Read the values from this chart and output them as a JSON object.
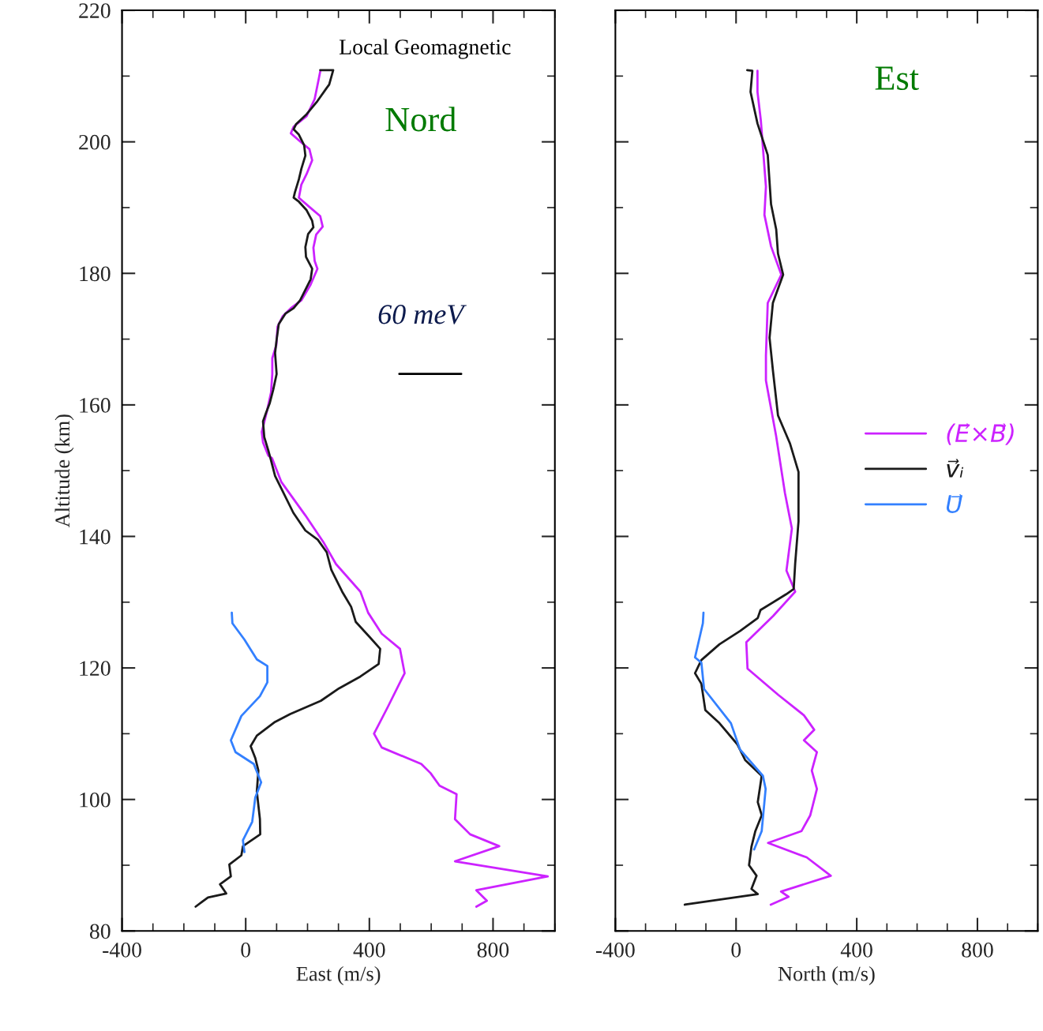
{
  "chart_data": [
    {
      "type": "line",
      "xlabel": "East (m/s)",
      "ylabel": "Altitude (km)",
      "xlim": [
        -400,
        1000
      ],
      "ylim": [
        80,
        220
      ],
      "xticks": [
        -400,
        {
          "value": -300,
          "label": null
        },
        {
          "value": -200,
          "label": null
        },
        {
          "value": -100,
          "label": null
        },
        0,
        {
          "value": 100,
          "label": null
        },
        {
          "value": 200,
          "label": null
        },
        {
          "value": 300,
          "label": null
        },
        400,
        {
          "value": 500,
          "label": null
        },
        {
          "value": 600,
          "label": null
        },
        {
          "value": 700,
          "label": null
        },
        800,
        {
          "value": 900,
          "label": null
        },
        {
          "value": 1000,
          "label": null
        }
      ],
      "yticks": [
        80,
        {
          "value": 90,
          "label": null
        },
        100,
        {
          "value": 110,
          "label": null
        },
        120,
        {
          "value": 130,
          "label": null
        },
        140,
        {
          "value": 150,
          "label": null
        },
        160,
        {
          "value": 170,
          "label": null
        },
        180,
        {
          "value": 190,
          "label": null
        },
        200,
        {
          "value": 210,
          "label": null
        },
        220
      ],
      "annotations": [
        "Local Geomagnetic",
        "Nord",
        "60 meV"
      ],
      "series": [
        {
          "color": "#cc22ff",
          "x": [
            241,
            236,
            223,
            197,
            155,
            146,
            180,
            206,
            215,
            197,
            180,
            172,
            206,
            241,
            249,
            228,
            219,
            223,
            232,
            210,
            180,
            146,
            120,
            103,
            99,
            86,
            86,
            82,
            69,
            52,
            56,
            73,
            85,
            115,
            193,
            253,
            292,
            371,
            396,
            440,
            499,
            514,
            460,
            415,
            440,
            568,
            598,
            627,
            682,
            677,
            726,
            820,
            677,
            977,
            746,
            780,
            746
          ],
          "values": [
            210.7,
            209.5,
            206.5,
            203.9,
            202.3,
            201.3,
            199.9,
            198.9,
            197.2,
            195.1,
            193.5,
            191.5,
            190.1,
            188.7,
            187.1,
            185.9,
            183.9,
            181.9,
            180.7,
            178.3,
            175.9,
            174.7,
            173.5,
            171.9,
            169.1,
            167.1,
            164.7,
            161.9,
            159.1,
            155.9,
            154.3,
            152.3,
            151.9,
            148.3,
            143.2,
            139.0,
            135.8,
            131.6,
            128.4,
            125.2,
            122.9,
            119.2,
            114.1,
            110.0,
            107.9,
            105.4,
            104.0,
            102.1,
            100.8,
            97.0,
            94.7,
            92.9,
            90.6,
            88.3,
            86.2,
            84.6,
            83.7
          ]
        },
        {
          "color": "#1a1a1a",
          "x": [
            241,
            283,
            270,
            262,
            232,
            197,
            163,
            155,
            172,
            189,
            193,
            180,
            172,
            159,
            155,
            172,
            197,
            215,
            219,
            202,
            193,
            195,
            215,
            210,
            193,
            176,
            155,
            129,
            107,
            100,
            95,
            100,
            89,
            78,
            65,
            56,
            60,
            73,
            80,
            95,
            115,
            154,
            193,
            233,
            262,
            277,
            312,
            341,
            356,
            401,
            435,
            430,
            371,
            302,
            243,
            144,
            95,
            36,
            16,
            31,
            41,
            36,
            46,
            47,
            -9,
            -14,
            -53,
            -48,
            -83,
            -63,
            -122,
            -162
          ],
          "values": [
            210.9,
            210.9,
            208.7,
            208.2,
            206.2,
            204.2,
            202.7,
            201.9,
            201.1,
            199.5,
            197.9,
            195.9,
            194.3,
            192.3,
            191.5,
            190.9,
            189.6,
            188.0,
            187.0,
            186.0,
            184.0,
            182.5,
            180.7,
            179.1,
            177.5,
            175.9,
            174.7,
            173.9,
            172.3,
            169.9,
            167.9,
            164.7,
            162.3,
            160.3,
            158.7,
            157.5,
            155.1,
            153.1,
            151.9,
            149.2,
            147.3,
            143.6,
            140.9,
            139.5,
            137.6,
            134.9,
            131.6,
            129.3,
            127.0,
            124.7,
            122.9,
            120.6,
            118.7,
            116.9,
            115.0,
            113.0,
            111.8,
            109.7,
            108.1,
            106.3,
            104.4,
            101.2,
            97.0,
            94.7,
            92.9,
            91.5,
            90.1,
            88.3,
            87.1,
            85.7,
            85.1,
            83.7
          ]
        },
        {
          "color": "#000000",
          "x": [
            497,
            697
          ],
          "values": [
            164.7,
            164.7
          ]
        },
        {
          "color": "#3380ff",
          "x": [
            -45,
            -43,
            -4,
            36,
            70,
            70,
            46,
            -14,
            -48,
            -33,
            26,
            50,
            31,
            21,
            -9,
            -4
          ],
          "values": [
            128.4,
            126.8,
            124.3,
            121.3,
            120.3,
            117.8,
            115.7,
            112.7,
            109.0,
            107.2,
            105.4,
            102.6,
            100.3,
            96.6,
            93.8,
            92.0
          ]
        }
      ]
    },
    {
      "type": "line",
      "xlabel": "North (m/s)",
      "tick_labels": "x",
      "legend": "right",
      "xlim": [
        -400,
        1000
      ],
      "ylim": [
        80,
        220
      ],
      "xticks": [
        -400,
        {
          "value": -300,
          "label": null
        },
        {
          "value": -200,
          "label": null
        },
        {
          "value": -100,
          "label": null
        },
        0,
        {
          "value": 100,
          "label": null
        },
        {
          "value": 200,
          "label": null
        },
        {
          "value": 300,
          "label": null
        },
        400,
        {
          "value": 500,
          "label": null
        },
        {
          "value": 600,
          "label": null
        },
        {
          "value": 700,
          "label": null
        },
        800,
        {
          "value": 900,
          "label": null
        },
        {
          "value": 1000,
          "label": null
        }
      ],
      "yticks": [
        80,
        {
          "value": 90,
          "label": null
        },
        100,
        {
          "value": 110,
          "label": null
        },
        120,
        {
          "value": 130,
          "label": null
        },
        140,
        {
          "value": 150,
          "label": null
        },
        160,
        {
          "value": 170,
          "label": null
        },
        180,
        {
          "value": 190,
          "label": null
        },
        200,
        {
          "value": 210,
          "label": null
        },
        220
      ],
      "annotations": [
        "Est"
      ],
      "series": [
        {
          "name": "(E⃗×B⃗)",
          "color": "#cc22ff",
          "x": [
            71,
            71,
            82,
            99,
            94,
            116,
            150,
            105,
            99,
            99,
            133,
            162,
            185,
            167,
            196,
            123,
            34,
            38,
            140,
            225,
            259,
            225,
            268,
            251,
            268,
            246,
            217,
            106,
            234,
            314,
            149,
            174,
            115
          ],
          "values": [
            210.8,
            207.6,
            203.3,
            193.2,
            188.9,
            184.1,
            179.8,
            175.5,
            167.5,
            163.7,
            155.2,
            146.6,
            141.2,
            134.8,
            131.6,
            127.9,
            123.9,
            119.9,
            115.9,
            112.8,
            110.6,
            109.0,
            107.2,
            104.4,
            101.6,
            97.6,
            95.2,
            93.4,
            91.2,
            88.4,
            86.0,
            85.2,
            84.0
          ]
        },
        {
          "name": "v⃗ᵢ",
          "color": "#1a1a1a",
          "x": [
            37,
            54,
            48,
            71,
            105,
            116,
            133,
            139,
            156,
            122,
            111,
            122,
            139,
            179,
            207,
            207,
            196,
            191,
            166,
            81,
            72,
            13,
            -55,
            -115,
            -136,
            -115,
            -102,
            -55,
            4,
            30,
            85,
            72,
            85,
            64,
            51,
            43,
            68,
            51,
            72,
            -170
          ],
          "values": [
            210.9,
            210.8,
            207.6,
            202.8,
            198.0,
            190.5,
            186.7,
            183.0,
            179.8,
            175.5,
            170.2,
            165.3,
            158.4,
            154.1,
            149.8,
            142.3,
            135.9,
            132.0,
            131.2,
            128.8,
            127.6,
            125.6,
            123.6,
            121.2,
            119.2,
            117.6,
            113.6,
            111.6,
            108.4,
            106.0,
            103.6,
            99.6,
            97.6,
            95.2,
            92.8,
            90.0,
            88.4,
            86.4,
            85.6,
            84.0
          ]
        },
        {
          "name": "U⃗",
          "color": "#3380ff",
          "x": [
            -108,
            -110,
            -136,
            -115,
            -106,
            -17,
            13,
            89,
            98,
            85,
            60
          ],
          "values": [
            128.4,
            126.8,
            121.6,
            120.8,
            116.8,
            111.6,
            107.6,
            103.6,
            101.6,
            95.2,
            92.4
          ]
        }
      ]
    }
  ]
}
